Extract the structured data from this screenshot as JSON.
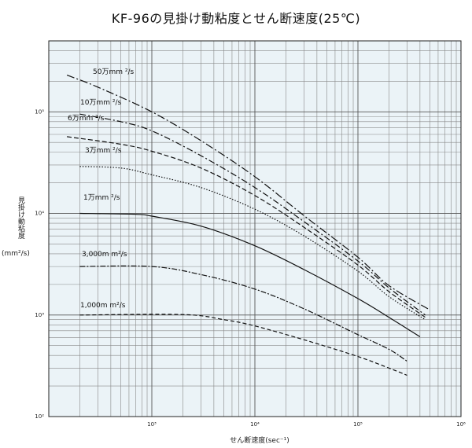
{
  "chart_data": {
    "type": "line",
    "title": "KF-96の見掛け動粘度とせん断速度(25℃)",
    "xlabel": "せん断速度(sec⁻¹)",
    "ylabel": "見掛け動粘度",
    "yunit": "(mm²/s)",
    "xscale": "log",
    "yscale": "log",
    "xlim": [
      100,
      1000000
    ],
    "ylim": [
      100,
      500000
    ],
    "x_ticks": [
      {
        "value": 1000,
        "label": "10³"
      },
      {
        "value": 10000,
        "label": "10⁴"
      },
      {
        "value": 100000,
        "label": "10⁵"
      },
      {
        "value": 1000000,
        "label": "10⁶"
      }
    ],
    "y_ticks": [
      {
        "value": 100,
        "label": "10²"
      },
      {
        "value": 1000,
        "label": "10³"
      },
      {
        "value": 10000,
        "label": "10⁴"
      },
      {
        "value": 100000,
        "label": "10⁵"
      }
    ],
    "grid": true,
    "background": "#ebf3f7",
    "series": [
      {
        "name": "50万mm ²/s",
        "dash": "10,3,2,3",
        "points": [
          [
            150,
            230000
          ],
          [
            300,
            175000
          ],
          [
            1000,
            100000
          ],
          [
            3000,
            52000
          ],
          [
            10000,
            23000
          ],
          [
            30000,
            9500
          ],
          [
            100000,
            3700
          ],
          [
            200000,
            1950
          ],
          [
            500000,
            1120
          ]
        ]
      },
      {
        "name": "10万mm ²/s",
        "dash": "8,3,2,3",
        "points": [
          [
            200,
            95000
          ],
          [
            500,
            80000
          ],
          [
            1000,
            65000
          ],
          [
            3000,
            37000
          ],
          [
            10000,
            18000
          ],
          [
            30000,
            8300
          ],
          [
            100000,
            3400
          ],
          [
            200000,
            1850
          ],
          [
            450000,
            1000
          ]
        ]
      },
      {
        "name": "6万mm ²/s",
        "dash": "6,3",
        "points": [
          [
            150,
            57000
          ],
          [
            500,
            48000
          ],
          [
            1000,
            41000
          ],
          [
            3000,
            28000
          ],
          [
            10000,
            15000
          ],
          [
            30000,
            7300
          ],
          [
            100000,
            3100
          ],
          [
            200000,
            1700
          ],
          [
            450000,
            950
          ]
        ]
      },
      {
        "name": "3万mm ²/s",
        "dash": "1.5,2",
        "points": [
          [
            200,
            29000
          ],
          [
            500,
            28000
          ],
          [
            1000,
            24000
          ],
          [
            3000,
            18000
          ],
          [
            10000,
            11000
          ],
          [
            30000,
            6000
          ],
          [
            100000,
            2700
          ],
          [
            200000,
            1520
          ],
          [
            450000,
            900
          ]
        ]
      },
      {
        "name": "1万mm ²/s",
        "dash": "",
        "points": [
          [
            200,
            10000
          ],
          [
            700,
            9800
          ],
          [
            1000,
            9400
          ],
          [
            3000,
            7500
          ],
          [
            10000,
            4800
          ],
          [
            30000,
            2800
          ],
          [
            100000,
            1450
          ],
          [
            200000,
            950
          ],
          [
            400000,
            610
          ]
        ]
      },
      {
        "name": "3,000m m²/s",
        "dash": "7,2,2,2",
        "points": [
          [
            200,
            3000
          ],
          [
            1000,
            3000
          ],
          [
            3000,
            2500
          ],
          [
            10000,
            1800
          ],
          [
            30000,
            1150
          ],
          [
            100000,
            640
          ],
          [
            200000,
            460
          ],
          [
            300000,
            350
          ]
        ]
      },
      {
        "name": "1,000m m²/s",
        "dash": "5,3",
        "points": [
          [
            200,
            1000
          ],
          [
            2000,
            1010
          ],
          [
            5000,
            900
          ],
          [
            10000,
            780
          ],
          [
            30000,
            570
          ],
          [
            100000,
            390
          ],
          [
            200000,
            300
          ],
          [
            300000,
            255
          ]
        ]
      }
    ]
  }
}
